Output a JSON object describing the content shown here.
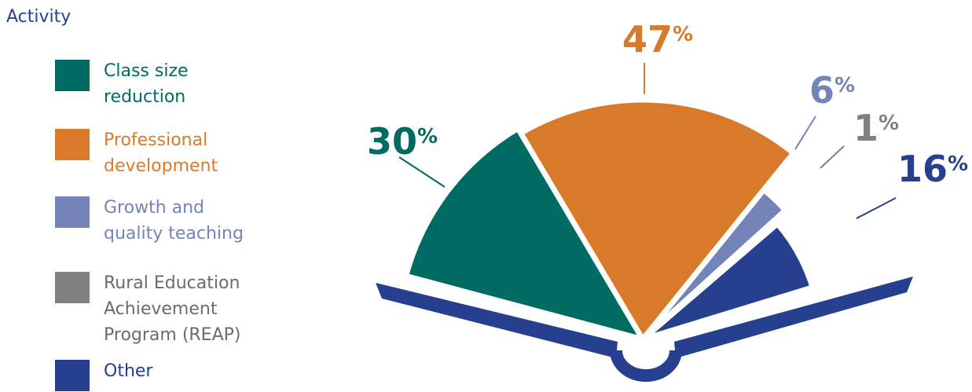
{
  "legend_title": "Activity",
  "chart_data": {
    "type": "pie",
    "legend_title": "Activity",
    "slices": [
      {
        "label": "Class size reduction",
        "label_lines": [
          "Class size",
          "reduction"
        ],
        "value": 30,
        "color": "#006b63"
      },
      {
        "label": "Professional development",
        "label_lines": [
          "Professional",
          "development"
        ],
        "value": 47,
        "color": "#d97a2b"
      },
      {
        "label": "Growth and quality teaching",
        "label_lines": [
          "Growth and",
          "quality teaching"
        ],
        "value": 6,
        "color": "#7484b9"
      },
      {
        "label": "Rural Education Achievement Program (REAP)",
        "label_lines": [
          "Rural Education",
          "Achievement",
          "Program (REAP)"
        ],
        "value": 1,
        "color": "#808080"
      },
      {
        "label": "Other",
        "label_lines": [
          "Other"
        ],
        "value": 16,
        "color": "#26408f"
      }
    ],
    "value_labels": [
      "30",
      "47",
      "6",
      "1",
      "16"
    ],
    "value_suffix": "%",
    "book_color": "#26408f"
  }
}
